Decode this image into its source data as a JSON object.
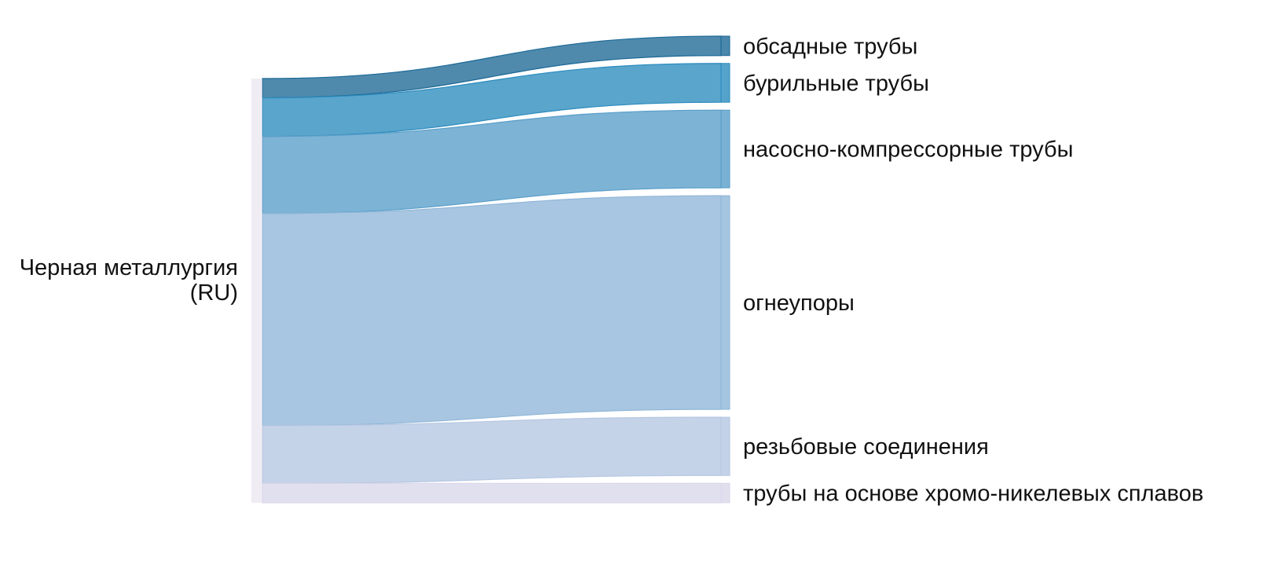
{
  "chart_data": {
    "type": "sankey",
    "source": {
      "label_lines": [
        "Черная металлургия",
        "(RU)"
      ],
      "color": "#e8e4f0"
    },
    "targets": [
      {
        "label": "обсадные трубы",
        "value": 1.0,
        "color": "#1d6996"
      },
      {
        "label": "бурильные трубы",
        "value": 2.0,
        "color": "#2b8cbe"
      },
      {
        "label": "насосно-компрессорные трубы",
        "value": 4.0,
        "color": "#589ec9"
      },
      {
        "label": "огнеупоры",
        "value": 11.0,
        "color": "#8fb6d8"
      },
      {
        "label": "резьбовые соединения",
        "value": 3.0,
        "color": "#b5c7e2"
      },
      {
        "label": "трубы на основе хромо-никелевых сплавов",
        "value": 1.0,
        "color": "#d9d7ea"
      }
    ]
  }
}
